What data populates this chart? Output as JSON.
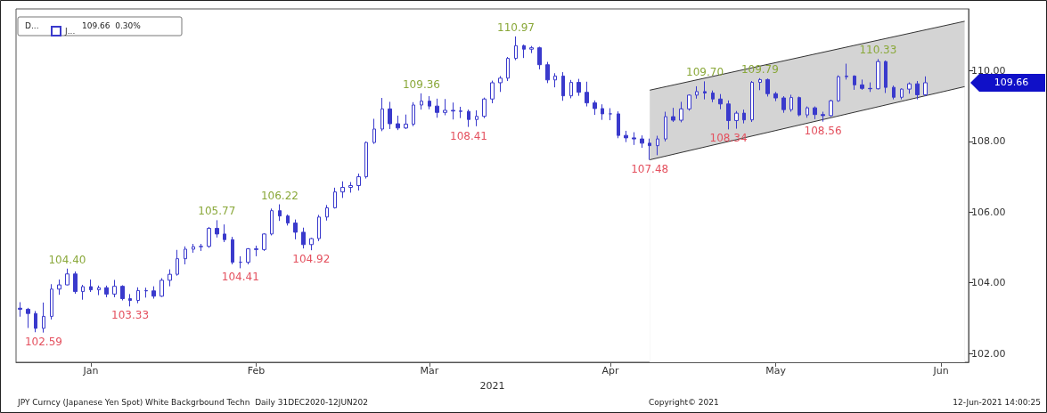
{
  "chart_data": {
    "type": "candlestick",
    "xlabel": "2021",
    "categories": [
      null,
      null,
      null,
      null,
      null,
      null,
      null,
      null,
      null,
      "Jan",
      null,
      null,
      null,
      null,
      null,
      null,
      null,
      null,
      null,
      null,
      null,
      null,
      null,
      null,
      null,
      null,
      null,
      null,
      null,
      null,
      "Feb",
      null,
      null,
      null,
      null,
      null,
      null,
      null,
      null,
      null,
      null,
      null,
      null,
      null,
      null,
      null,
      null,
      null,
      null,
      null,
      null,
      null,
      "Mar",
      null,
      null,
      null,
      null,
      null,
      null,
      null,
      null,
      null,
      null,
      null,
      null,
      null,
      null,
      null,
      null,
      null,
      null,
      null,
      null,
      null,
      null,
      "Apr",
      null,
      null,
      null,
      null,
      null,
      null,
      null,
      null,
      null,
      null,
      null,
      null,
      null,
      null,
      null,
      null,
      null,
      null,
      null,
      null,
      "May",
      null,
      null,
      null,
      null,
      null,
      null,
      null,
      null,
      null,
      null,
      null,
      null,
      null,
      null,
      null,
      null,
      null,
      null,
      null,
      null,
      "Jun",
      null,
      null,
      null
    ],
    "series": [
      {
        "name": "J...",
        "color": "#3a3acc",
        "ohlc": [
          [
            103.28,
            103.45,
            103.04,
            103.25
          ],
          [
            103.25,
            103.29,
            102.72,
            103.13
          ],
          [
            103.13,
            103.2,
            102.6,
            102.71
          ],
          [
            102.71,
            103.44,
            102.59,
            103.05
          ],
          [
            103.05,
            103.96,
            102.96,
            103.82
          ],
          [
            103.82,
            104.09,
            103.66,
            103.94
          ],
          [
            103.94,
            104.4,
            103.93,
            104.25
          ],
          [
            104.25,
            104.32,
            103.69,
            103.75
          ],
          [
            103.75,
            103.94,
            103.52,
            103.89
          ],
          [
            103.89,
            104.09,
            103.74,
            103.8
          ],
          [
            103.8,
            103.92,
            103.65,
            103.86
          ],
          [
            103.86,
            103.92,
            103.59,
            103.68
          ],
          [
            103.68,
            104.08,
            103.59,
            103.9
          ],
          [
            103.9,
            103.93,
            103.5,
            103.55
          ],
          [
            103.55,
            103.68,
            103.33,
            103.5
          ],
          [
            103.5,
            103.87,
            103.42,
            103.78
          ],
          [
            103.78,
            103.86,
            103.58,
            103.77
          ],
          [
            103.77,
            103.9,
            103.55,
            103.62
          ],
          [
            103.62,
            104.13,
            103.6,
            104.07
          ],
          [
            104.07,
            104.38,
            103.9,
            104.24
          ],
          [
            104.24,
            104.93,
            104.2,
            104.68
          ],
          [
            104.68,
            105.03,
            104.52,
            104.95
          ],
          [
            104.95,
            105.1,
            104.85,
            105.02
          ],
          [
            105.02,
            105.1,
            104.9,
            105.03
          ],
          [
            105.03,
            105.58,
            104.99,
            105.54
          ],
          [
            105.54,
            105.77,
            105.28,
            105.38
          ],
          [
            105.38,
            105.65,
            105.15,
            105.22
          ],
          [
            105.22,
            105.3,
            104.52,
            104.58
          ],
          [
            104.58,
            104.75,
            104.41,
            104.58
          ],
          [
            104.58,
            104.98,
            104.52,
            104.96
          ],
          [
            104.96,
            105.05,
            104.75,
            104.94
          ],
          [
            104.94,
            105.4,
            104.9,
            105.38
          ],
          [
            105.38,
            106.1,
            105.34,
            106.04
          ],
          [
            106.04,
            106.22,
            105.75,
            105.89
          ],
          [
            105.89,
            105.93,
            105.62,
            105.69
          ],
          [
            105.69,
            105.79,
            105.23,
            105.43
          ],
          [
            105.43,
            105.56,
            104.97,
            105.08
          ],
          [
            105.08,
            105.27,
            104.92,
            105.25
          ],
          [
            105.25,
            105.92,
            105.18,
            105.86
          ],
          [
            105.86,
            106.2,
            105.76,
            106.12
          ],
          [
            106.12,
            106.69,
            106.1,
            106.57
          ],
          [
            106.57,
            106.87,
            106.4,
            106.7
          ],
          [
            106.7,
            106.85,
            106.55,
            106.75
          ],
          [
            106.75,
            107.09,
            106.61,
            107.0
          ],
          [
            107.0,
            108.0,
            106.95,
            107.97
          ],
          [
            107.97,
            108.64,
            107.93,
            108.35
          ],
          [
            108.35,
            109.23,
            108.29,
            108.92
          ],
          [
            108.92,
            109.12,
            108.35,
            108.5
          ],
          [
            108.5,
            108.73,
            108.32,
            108.38
          ],
          [
            108.38,
            108.76,
            108.35,
            108.49
          ],
          [
            108.49,
            109.11,
            108.43,
            109.03
          ],
          [
            109.03,
            109.36,
            108.9,
            109.14
          ],
          [
            109.14,
            109.28,
            108.91,
            109.0
          ],
          [
            109.0,
            109.21,
            108.67,
            108.82
          ],
          [
            108.82,
            109.2,
            108.74,
            108.88
          ],
          [
            108.88,
            109.1,
            108.62,
            108.86
          ],
          [
            108.86,
            108.98,
            108.66,
            108.85
          ],
          [
            108.85,
            108.9,
            108.41,
            108.62
          ],
          [
            108.62,
            108.88,
            108.43,
            108.71
          ],
          [
            108.71,
            109.24,
            108.66,
            109.2
          ],
          [
            109.2,
            109.72,
            109.08,
            109.66
          ],
          [
            109.66,
            109.85,
            109.4,
            109.79
          ],
          [
            109.79,
            110.39,
            109.71,
            110.35
          ],
          [
            110.35,
            110.97,
            110.3,
            110.71
          ],
          [
            110.71,
            110.74,
            110.36,
            110.61
          ],
          [
            110.61,
            110.7,
            110.5,
            110.65
          ],
          [
            110.65,
            110.68,
            110.04,
            110.17
          ],
          [
            110.17,
            110.25,
            109.65,
            109.74
          ],
          [
            109.74,
            109.93,
            109.53,
            109.85
          ],
          [
            109.85,
            109.96,
            109.15,
            109.29
          ],
          [
            109.29,
            109.74,
            109.22,
            109.67
          ],
          [
            109.67,
            109.77,
            109.29,
            109.39
          ],
          [
            109.39,
            109.69,
            108.99,
            109.09
          ],
          [
            109.09,
            109.16,
            108.75,
            108.93
          ],
          [
            108.93,
            109.05,
            108.61,
            108.78
          ],
          [
            108.78,
            108.94,
            108.6,
            108.78
          ],
          [
            108.78,
            108.85,
            108.09,
            108.17
          ],
          [
            108.17,
            108.3,
            107.98,
            108.1
          ],
          [
            108.1,
            108.26,
            107.9,
            108.07
          ],
          [
            108.07,
            108.17,
            107.82,
            107.95
          ],
          [
            107.95,
            108.08,
            107.48,
            107.88
          ],
          [
            107.88,
            108.16,
            107.61,
            108.07
          ],
          [
            108.07,
            108.84,
            108.0,
            108.7
          ],
          [
            108.7,
            108.95,
            108.55,
            108.6
          ],
          [
            108.6,
            109.12,
            108.54,
            108.92
          ],
          [
            108.92,
            109.33,
            108.87,
            109.31
          ],
          [
            109.31,
            109.56,
            109.21,
            109.41
          ],
          [
            109.41,
            109.7,
            109.19,
            109.37
          ],
          [
            109.37,
            109.44,
            109.11,
            109.2
          ],
          [
            109.2,
            109.34,
            108.91,
            109.06
          ],
          [
            109.06,
            109.16,
            108.34,
            108.59
          ],
          [
            108.59,
            108.86,
            108.36,
            108.8
          ],
          [
            108.8,
            108.9,
            108.51,
            108.61
          ],
          [
            108.61,
            109.71,
            108.55,
            109.67
          ],
          [
            109.67,
            109.79,
            109.45,
            109.75
          ],
          [
            109.75,
            109.78,
            109.27,
            109.35
          ],
          [
            109.35,
            109.4,
            109.14,
            109.23
          ],
          [
            109.23,
            109.28,
            108.81,
            108.9
          ],
          [
            108.9,
            109.32,
            108.84,
            109.24
          ],
          [
            109.24,
            109.27,
            108.71,
            108.75
          ],
          [
            108.75,
            108.99,
            108.67,
            108.95
          ],
          [
            108.95,
            108.99,
            108.63,
            108.76
          ],
          [
            108.76,
            108.84,
            108.56,
            108.73
          ],
          [
            108.73,
            109.18,
            108.7,
            109.15
          ],
          [
            109.15,
            109.87,
            109.12,
            109.83
          ],
          [
            109.83,
            110.2,
            109.75,
            109.85
          ],
          [
            109.85,
            109.87,
            109.46,
            109.6
          ],
          [
            109.6,
            109.75,
            109.46,
            109.5
          ],
          [
            109.5,
            109.67,
            109.4,
            109.49
          ],
          [
            109.49,
            110.33,
            109.47,
            110.26
          ],
          [
            110.26,
            110.29,
            109.37,
            109.53
          ],
          [
            109.53,
            109.58,
            109.19,
            109.25
          ],
          [
            109.25,
            109.5,
            109.19,
            109.48
          ],
          [
            109.48,
            109.67,
            109.35,
            109.63
          ],
          [
            109.63,
            109.71,
            109.19,
            109.32
          ],
          [
            109.32,
            109.84,
            109.28,
            109.66
          ],
          null,
          null,
          null,
          null,
          null
        ]
      },
      {
        "type": "area",
        "color": "#d4d4d4",
        "values": [
          null,
          null,
          null,
          null,
          null,
          null,
          null,
          null,
          null,
          null,
          null,
          null,
          null,
          null,
          null,
          null,
          null,
          null,
          null,
          null,
          null,
          null,
          null,
          null,
          null,
          null,
          null,
          null,
          null,
          null,
          null,
          null,
          null,
          null,
          null,
          null,
          null,
          null,
          null,
          null,
          null,
          null,
          null,
          null,
          null,
          null,
          null,
          null,
          null,
          null,
          null,
          null,
          null,
          null,
          null,
          null,
          null,
          null,
          null,
          null,
          null,
          null,
          null,
          null,
          null,
          null,
          null,
          null,
          null,
          null,
          null,
          null,
          null,
          null,
          null,
          null,
          null,
          null,
          null,
          null,
          109.45,
          null,
          null,
          null,
          null,
          null,
          null,
          null,
          null,
          null,
          null,
          null,
          null,
          null,
          null,
          null,
          null,
          null,
          null,
          null,
          null,
          null,
          null,
          null,
          null,
          null,
          null,
          null,
          null,
          null,
          null,
          null,
          null,
          null,
          null,
          null,
          null,
          null,
          null,
          null,
          111.4
        ]
      },
      {
        "type": "area",
        "color": "#ffffff",
        "values": [
          null,
          null,
          null,
          null,
          null,
          null,
          null,
          null,
          null,
          null,
          null,
          null,
          null,
          null,
          null,
          null,
          null,
          null,
          null,
          null,
          null,
          null,
          null,
          null,
          null,
          null,
          null,
          null,
          null,
          null,
          null,
          null,
          null,
          null,
          null,
          null,
          null,
          null,
          null,
          null,
          null,
          null,
          null,
          null,
          null,
          null,
          null,
          null,
          null,
          null,
          null,
          null,
          null,
          null,
          null,
          null,
          null,
          null,
          null,
          null,
          null,
          null,
          null,
          null,
          null,
          null,
          null,
          null,
          null,
          null,
          null,
          null,
          null,
          null,
          null,
          null,
          null,
          null,
          null,
          null,
          107.48,
          null,
          null,
          null,
          null,
          null,
          null,
          null,
          null,
          null,
          null,
          null,
          null,
          null,
          null,
          null,
          null,
          null,
          null,
          null,
          null,
          null,
          null,
          null,
          null,
          null,
          null,
          null,
          null,
          null,
          null,
          null,
          null,
          null,
          null,
          null,
          null,
          null,
          null,
          null,
          109.55
        ]
      }
    ],
    "ylim": [
      101.75,
      111.75
    ],
    "yticks": [
      {
        "value": 102,
        "label": "102.00"
      },
      {
        "value": 104,
        "label": "104.00"
      },
      {
        "value": 106,
        "label": "106.00"
      },
      {
        "value": 108,
        "label": "108.00"
      },
      {
        "value": 110,
        "label": "110.00"
      }
    ],
    "legend": "top left",
    "annotations": [
      "JPY Curncy (Japanese Yen Spot) White Backgrbound Techn  Daily 31DEC2020-12JUN202",
      "Copyright© 2021",
      "12-Jun-2021 14:00:25",
      "D...",
      "109.66  0.30%",
      "109.66",
      {
        "text": "102.59",
        "y": 102.59
      },
      {
        "text": "104.40",
        "y": 104.4
      },
      {
        "text": "103.33",
        "y": 103.33
      },
      {
        "text": "105.77",
        "y": 105.77
      },
      {
        "text": "104.41",
        "y": 104.41
      },
      {
        "text": "106.22",
        "y": 106.22
      },
      {
        "text": "104.92",
        "y": 104.92
      },
      {
        "text": "109.36",
        "y": 109.36
      },
      {
        "text": "108.41",
        "y": 108.41
      },
      {
        "text": "110.97",
        "y": 110.97
      },
      {
        "text": "107.48",
        "y": 107.48
      },
      {
        "text": "109.70",
        "y": 109.7
      },
      {
        "text": "108.34",
        "y": 108.34
      },
      {
        "text": "109.79",
        "y": 109.79
      },
      {
        "text": "108.56",
        "y": 108.56
      },
      {
        "text": "110.33",
        "y": 110.33
      }
    ]
  }
}
